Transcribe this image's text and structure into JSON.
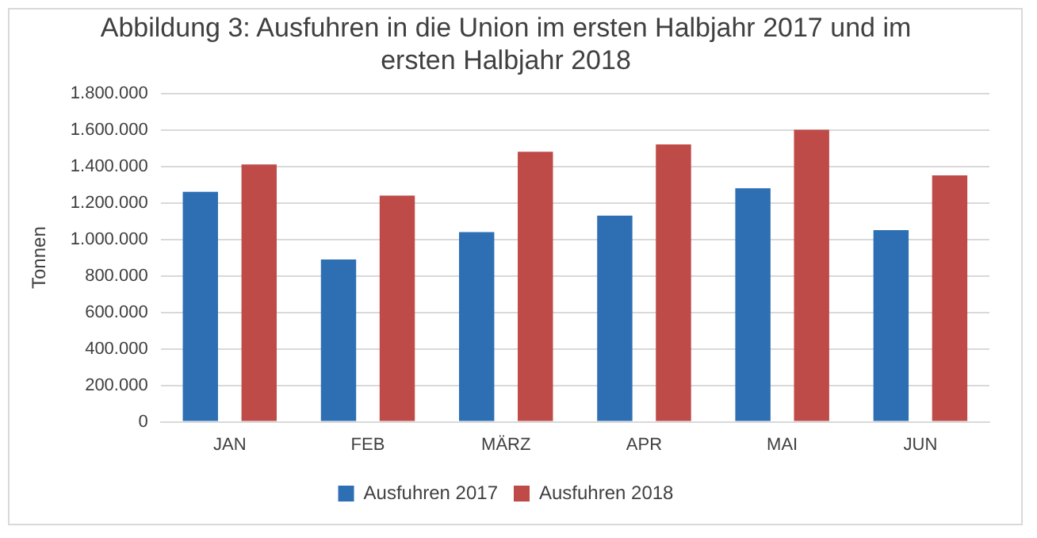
{
  "chart_data": {
    "type": "bar",
    "title": "Abbildung 3: Ausfuhren in die Union im ersten Halbjahr 2017 und im ersten Halbjahr 2018",
    "ylabel": "Tonnen",
    "categories": [
      "JAN",
      "FEB",
      "MÄRZ",
      "APR",
      "MAI",
      "JUN"
    ],
    "series": [
      {
        "name": "Ausfuhren 2017",
        "color": "#2e6fb4",
        "values": [
          1260000,
          890000,
          1040000,
          1130000,
          1280000,
          1050000
        ]
      },
      {
        "name": "Ausfuhren 2018",
        "color": "#be4b48",
        "values": [
          1410000,
          1240000,
          1480000,
          1520000,
          1600000,
          1350000
        ]
      }
    ],
    "ylim": [
      0,
      1800000
    ],
    "yticks": [
      {
        "value": 0,
        "label": "0"
      },
      {
        "value": 200000,
        "label": "200.000"
      },
      {
        "value": 400000,
        "label": "400.000"
      },
      {
        "value": 600000,
        "label": "600.000"
      },
      {
        "value": 800000,
        "label": "800.000"
      },
      {
        "value": 1000000,
        "label": "1.000.000"
      },
      {
        "value": 1200000,
        "label": "1.200.000"
      },
      {
        "value": 1400000,
        "label": "1.400.000"
      },
      {
        "value": 1600000,
        "label": "1.600.000"
      },
      {
        "value": 1800000,
        "label": "1.800.000"
      }
    ],
    "grid": "y",
    "legend": "bottom"
  }
}
